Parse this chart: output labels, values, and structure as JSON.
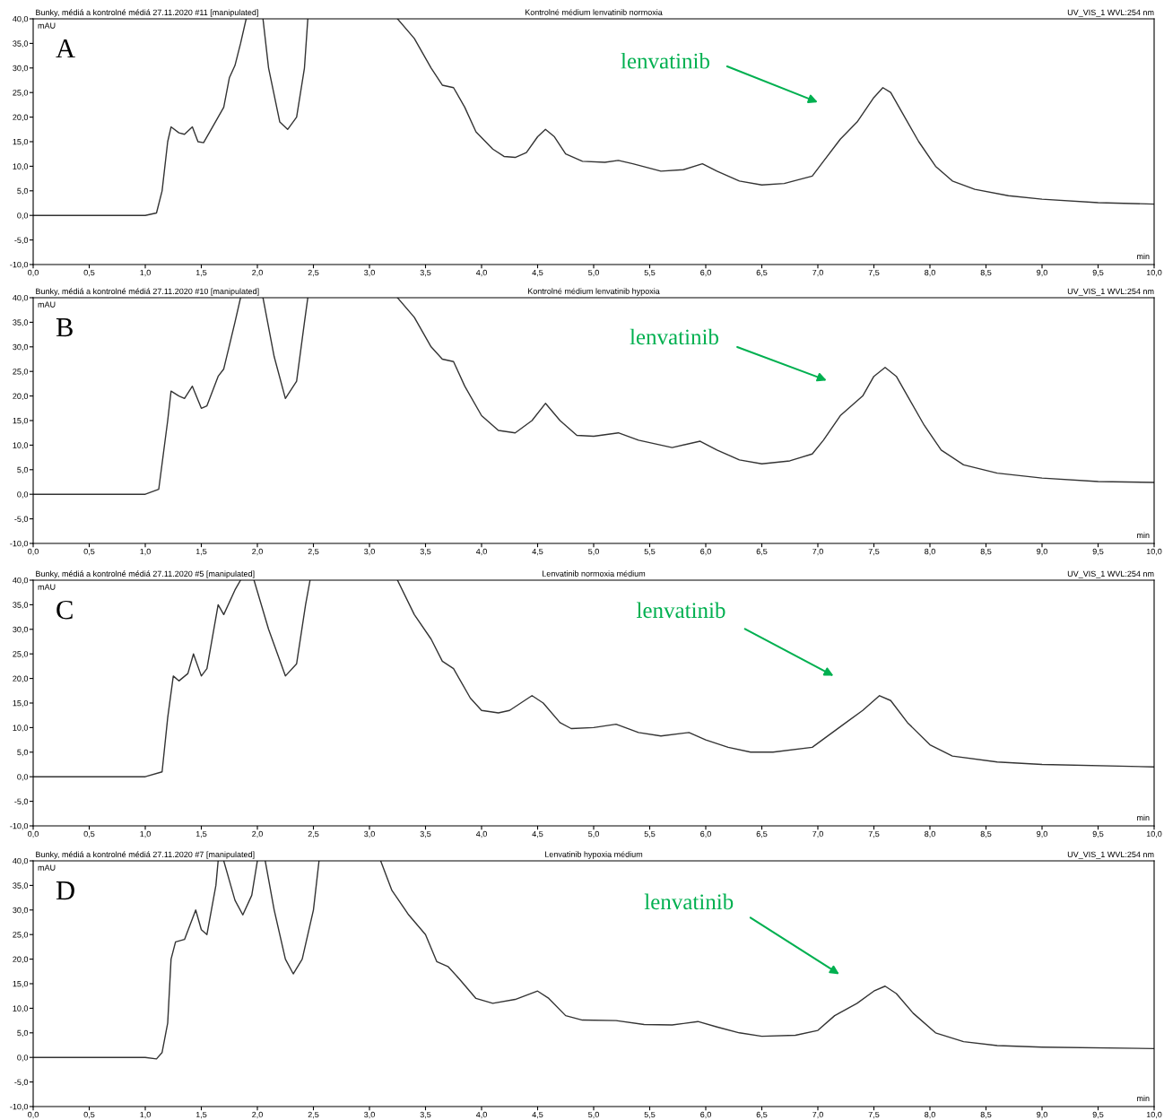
{
  "chart_data": [
    {
      "type": "line",
      "title": "Kontrolné médium lenvatinib normoxia",
      "xlabel": "min",
      "ylabel": "mAU",
      "annotations": [
        "Bunky, médiá a kontrolné médiá 27.11.2020 #11 [manipulated]",
        "UV_VIS_1 WVL:254 nm",
        "A",
        "lenvatinib"
      ],
      "xlim": [
        0,
        10
      ],
      "ylim": [
        -10,
        40
      ],
      "xticks": [
        {
          "value": 0,
          "label": "0,0"
        },
        {
          "value": 0.5,
          "label": "0,5"
        },
        {
          "value": 1,
          "label": "1,0"
        },
        {
          "value": 1.5,
          "label": "1,5"
        },
        {
          "value": 2,
          "label": "2,0"
        },
        {
          "value": 2.5,
          "label": "2,5"
        },
        {
          "value": 3,
          "label": "3,0"
        },
        {
          "value": 3.5,
          "label": "3,5"
        },
        {
          "value": 4,
          "label": "4,0"
        },
        {
          "value": 4.5,
          "label": "4,5"
        },
        {
          "value": 5,
          "label": "5,0"
        },
        {
          "value": 5.5,
          "label": "5,5"
        },
        {
          "value": 6,
          "label": "6,0"
        },
        {
          "value": 6.5,
          "label": "6,5"
        },
        {
          "value": 7,
          "label": "7,0"
        },
        {
          "value": 7.5,
          "label": "7,5"
        },
        {
          "value": 8,
          "label": "8,0"
        },
        {
          "value": 8.5,
          "label": "8,5"
        },
        {
          "value": 9,
          "label": "9,0"
        },
        {
          "value": 9.5,
          "label": "9,5"
        },
        {
          "value": 10,
          "label": "10,0"
        }
      ],
      "yticks": [
        {
          "value": -10,
          "label": "-10,0"
        },
        {
          "value": -5,
          "label": "-5,0"
        },
        {
          "value": 0,
          "label": "0,0"
        },
        {
          "value": 5,
          "label": "5,0"
        },
        {
          "value": 10,
          "label": "10,0"
        },
        {
          "value": 15,
          "label": "15,0"
        },
        {
          "value": 20,
          "label": "20,0"
        },
        {
          "value": 25,
          "label": "25,0"
        },
        {
          "value": 30,
          "label": "30,0"
        },
        {
          "value": 35,
          "label": "35,0"
        },
        {
          "value": 40,
          "label": "40,0"
        }
      ],
      "grid": false,
      "marker": "none",
      "line_style": "solid",
      "series": [
        {
          "color": "#333333",
          "x": [
            0,
            1.0,
            1.1,
            1.15,
            1.2,
            1.23,
            1.3,
            1.35,
            1.42,
            1.47,
            1.52,
            1.6,
            1.7,
            1.75,
            1.8,
            1.85,
            1.9,
            1.95,
            2.05,
            2.1,
            2.2,
            2.27,
            2.35,
            2.42,
            2.45,
            2.8,
            3.25,
            3.4,
            3.55,
            3.65,
            3.75,
            3.85,
            3.95,
            4.1,
            4.2,
            4.3,
            4.4,
            4.5,
            4.57,
            4.65,
            4.75,
            4.9,
            5.1,
            5.22,
            5.35,
            5.6,
            5.8,
            5.97,
            6.1,
            6.3,
            6.5,
            6.7,
            6.95,
            7.05,
            7.2,
            7.35,
            7.5,
            7.58,
            7.65,
            7.75,
            7.9,
            8.05,
            8.2,
            8.4,
            8.7,
            9.0,
            9.5,
            10
          ],
          "values": [
            0,
            0,
            0.5,
            5,
            15,
            18,
            16.8,
            16.5,
            18,
            15,
            14.8,
            18,
            22,
            28,
            30.5,
            35,
            40,
            null,
            40,
            30,
            19,
            17.5,
            20,
            30,
            40,
            null,
            40,
            36,
            30,
            26.5,
            26,
            22,
            17,
            13.5,
            12,
            11.8,
            12.8,
            16,
            17.5,
            16,
            12.5,
            11,
            10.8,
            11.2,
            10.5,
            9,
            9.3,
            10.5,
            9,
            7,
            6.2,
            6.5,
            8,
            11,
            15.5,
            19,
            24,
            26,
            25,
            21,
            15,
            10,
            7,
            5.3,
            4,
            3.3,
            2.6,
            2.3
          ]
        }
      ]
    },
    {
      "type": "line",
      "title": "Kontrolné médium lenvatinib hypoxia",
      "xlabel": "min",
      "ylabel": "mAU",
      "annotations": [
        "Bunky, médiá a kontrolné médiá 27.11.2020 #10 [manipulated]",
        "UV_VIS_1 WVL:254 nm",
        "B",
        "lenvatinib"
      ],
      "xlim": [
        0,
        10
      ],
      "ylim": [
        -10,
        40
      ],
      "xticks": [
        {
          "value": 0,
          "label": "0,0"
        },
        {
          "value": 0.5,
          "label": "0,5"
        },
        {
          "value": 1,
          "label": "1,0"
        },
        {
          "value": 1.5,
          "label": "1,5"
        },
        {
          "value": 2,
          "label": "2,0"
        },
        {
          "value": 2.5,
          "label": "2,5"
        },
        {
          "value": 3,
          "label": "3,0"
        },
        {
          "value": 3.5,
          "label": "3,5"
        },
        {
          "value": 4,
          "label": "4,0"
        },
        {
          "value": 4.5,
          "label": "4,5"
        },
        {
          "value": 5,
          "label": "5,0"
        },
        {
          "value": 5.5,
          "label": "5,5"
        },
        {
          "value": 6,
          "label": "6,0"
        },
        {
          "value": 6.5,
          "label": "6,5"
        },
        {
          "value": 7,
          "label": "7,0"
        },
        {
          "value": 7.5,
          "label": "7,5"
        },
        {
          "value": 8,
          "label": "8,0"
        },
        {
          "value": 8.5,
          "label": "8,5"
        },
        {
          "value": 9,
          "label": "9,0"
        },
        {
          "value": 9.5,
          "label": "9,5"
        },
        {
          "value": 10,
          "label": "10,0"
        }
      ],
      "yticks": [
        {
          "value": -10,
          "label": "-10,0"
        },
        {
          "value": -5,
          "label": "-5,0"
        },
        {
          "value": 0,
          "label": "0,0"
        },
        {
          "value": 5,
          "label": "5,0"
        },
        {
          "value": 10,
          "label": "10,0"
        },
        {
          "value": 15,
          "label": "15,0"
        },
        {
          "value": 20,
          "label": "20,0"
        },
        {
          "value": 25,
          "label": "25,0"
        },
        {
          "value": 30,
          "label": "30,0"
        },
        {
          "value": 35,
          "label": "35,0"
        },
        {
          "value": 40,
          "label": "40,0"
        }
      ],
      "grid": false,
      "marker": "none",
      "line_style": "solid",
      "series": [
        {
          "color": "#333333",
          "x": [
            0,
            1.0,
            1.12,
            1.2,
            1.23,
            1.3,
            1.35,
            1.42,
            1.5,
            1.55,
            1.65,
            1.7,
            1.8,
            1.85,
            1.95,
            2.05,
            2.15,
            2.25,
            2.35,
            2.42,
            2.45,
            2.8,
            3.25,
            3.4,
            3.55,
            3.65,
            3.75,
            3.85,
            4.0,
            4.15,
            4.3,
            4.45,
            4.57,
            4.7,
            4.85,
            5.0,
            5.22,
            5.4,
            5.7,
            5.95,
            6.1,
            6.3,
            6.5,
            6.75,
            6.95,
            7.05,
            7.2,
            7.4,
            7.5,
            7.6,
            7.7,
            7.8,
            7.95,
            8.1,
            8.3,
            8.6,
            9.0,
            9.5,
            10
          ],
          "values": [
            0,
            0,
            1,
            15,
            21,
            20,
            19.5,
            22,
            17.5,
            18,
            24,
            25.5,
            35,
            40,
            null,
            40,
            28,
            19.5,
            23,
            35,
            40,
            null,
            40,
            36,
            30,
            27.5,
            27,
            22,
            16,
            13,
            12.5,
            15,
            18.5,
            15,
            12,
            11.8,
            12.5,
            11,
            9.5,
            10.8,
            9,
            7,
            6.2,
            6.8,
            8.2,
            11,
            16,
            20,
            24,
            25.8,
            24,
            20,
            14,
            9,
            6,
            4.3,
            3.3,
            2.6,
            2.4
          ]
        }
      ]
    },
    {
      "type": "line",
      "title": "Lenvatinib normoxia médium",
      "xlabel": "min",
      "ylabel": "mAU",
      "annotations": [
        "Bunky, médiá a kontrolné médiá 27.11.2020 #5 [manipulated]",
        "UV_VIS_1 WVL:254 nm",
        "C",
        "lenvatinib"
      ],
      "xlim": [
        0,
        10
      ],
      "ylim": [
        -10,
        40
      ],
      "xticks": [
        {
          "value": 0,
          "label": "0,0"
        },
        {
          "value": 0.5,
          "label": "0,5"
        },
        {
          "value": 1,
          "label": "1,0"
        },
        {
          "value": 1.5,
          "label": "1,5"
        },
        {
          "value": 2,
          "label": "2,0"
        },
        {
          "value": 2.5,
          "label": "2,5"
        },
        {
          "value": 3,
          "label": "3,0"
        },
        {
          "value": 3.5,
          "label": "3,5"
        },
        {
          "value": 4,
          "label": "4,0"
        },
        {
          "value": 4.5,
          "label": "4,5"
        },
        {
          "value": 5,
          "label": "5,0"
        },
        {
          "value": 5.5,
          "label": "5,5"
        },
        {
          "value": 6,
          "label": "6,0"
        },
        {
          "value": 6.5,
          "label": "6,5"
        },
        {
          "value": 7,
          "label": "7,0"
        },
        {
          "value": 7.5,
          "label": "7,5"
        },
        {
          "value": 8,
          "label": "8,0"
        },
        {
          "value": 8.5,
          "label": "8,5"
        },
        {
          "value": 9,
          "label": "9,0"
        },
        {
          "value": 9.5,
          "label": "9,5"
        },
        {
          "value": 10,
          "label": "10,0"
        }
      ],
      "yticks": [
        {
          "value": -10,
          "label": "-10,0"
        },
        {
          "value": -5,
          "label": "-5,0"
        },
        {
          "value": 0,
          "label": "0,0"
        },
        {
          "value": 5,
          "label": "5,0"
        },
        {
          "value": 10,
          "label": "10,0"
        },
        {
          "value": 15,
          "label": "15,0"
        },
        {
          "value": 20,
          "label": "20,0"
        },
        {
          "value": 25,
          "label": "25,0"
        },
        {
          "value": 30,
          "label": "30,0"
        },
        {
          "value": 35,
          "label": "35,0"
        },
        {
          "value": 40,
          "label": "40,0"
        }
      ],
      "grid": false,
      "marker": "none",
      "line_style": "solid",
      "series": [
        {
          "color": "#333333",
          "x": [
            0,
            1.0,
            1.15,
            1.2,
            1.25,
            1.3,
            1.38,
            1.43,
            1.5,
            1.55,
            1.65,
            1.7,
            1.8,
            1.85,
            1.9,
            1.97,
            2.1,
            2.25,
            2.35,
            2.43,
            2.47,
            2.8,
            3.25,
            3.4,
            3.55,
            3.65,
            3.75,
            3.9,
            4.0,
            4.15,
            4.25,
            4.45,
            4.55,
            4.7,
            4.8,
            5.0,
            5.2,
            5.4,
            5.6,
            5.85,
            6.0,
            6.2,
            6.4,
            6.6,
            6.95,
            7.1,
            7.25,
            7.4,
            7.55,
            7.65,
            7.8,
            8.0,
            8.2,
            8.6,
            9.0,
            10
          ],
          "values": [
            0,
            0,
            1,
            12,
            20.5,
            19.5,
            21,
            25,
            20.5,
            22,
            35,
            33,
            38,
            40,
            null,
            40,
            30,
            20.5,
            23,
            35,
            40,
            null,
            40,
            33,
            28,
            23.5,
            22,
            16,
            13.5,
            13,
            13.5,
            16.5,
            15,
            11,
            9.8,
            10,
            10.7,
            9,
            8.3,
            9,
            7.5,
            6,
            5,
            5,
            6,
            8.5,
            11,
            13.5,
            16.5,
            15.5,
            11,
            6.5,
            4.2,
            3,
            2.5,
            2.0
          ]
        }
      ]
    },
    {
      "type": "line",
      "title": "Lenvatinib hypoxia médium",
      "xlabel": "min",
      "ylabel": "mAU",
      "annotations": [
        "Bunky, médiá a kontrolné médiá 27.11.2020 #7 [manipulated]",
        "UV_VIS_1 WVL:254 nm",
        "D",
        "lenvatinib"
      ],
      "xlim": [
        0,
        10
      ],
      "ylim": [
        -10,
        40
      ],
      "xticks": [
        {
          "value": 0,
          "label": "0,0"
        },
        {
          "value": 0.5,
          "label": "0,5"
        },
        {
          "value": 1,
          "label": "1,0"
        },
        {
          "value": 1.5,
          "label": "1,5"
        },
        {
          "value": 2,
          "label": "2,0"
        },
        {
          "value": 2.5,
          "label": "2,5"
        },
        {
          "value": 3,
          "label": "3,0"
        },
        {
          "value": 3.5,
          "label": "3,5"
        },
        {
          "value": 4,
          "label": "4,0"
        },
        {
          "value": 4.5,
          "label": "4,5"
        },
        {
          "value": 5,
          "label": "5,0"
        },
        {
          "value": 5.5,
          "label": "5,5"
        },
        {
          "value": 6,
          "label": "6,0"
        },
        {
          "value": 6.5,
          "label": "6,5"
        },
        {
          "value": 7,
          "label": "7,0"
        },
        {
          "value": 7.5,
          "label": "7,5"
        },
        {
          "value": 8,
          "label": "8,0"
        },
        {
          "value": 8.5,
          "label": "8,5"
        },
        {
          "value": 9,
          "label": "9,0"
        },
        {
          "value": 9.5,
          "label": "9,5"
        },
        {
          "value": 10,
          "label": "10,0"
        }
      ],
      "yticks": [
        {
          "value": -10,
          "label": "-10,0"
        },
        {
          "value": -5,
          "label": "-5,0"
        },
        {
          "value": 0,
          "label": "0,0"
        },
        {
          "value": 5,
          "label": "5,0"
        },
        {
          "value": 10,
          "label": "10,0"
        },
        {
          "value": 15,
          "label": "15,0"
        },
        {
          "value": 20,
          "label": "20,0"
        },
        {
          "value": 25,
          "label": "25,0"
        },
        {
          "value": 30,
          "label": "30,0"
        },
        {
          "value": 35,
          "label": "35,0"
        },
        {
          "value": 40,
          "label": "40,0"
        }
      ],
      "grid": false,
      "marker": "none",
      "line_style": "solid",
      "series": [
        {
          "color": "#333333",
          "x": [
            0,
            1.0,
            1.1,
            1.15,
            1.2,
            1.23,
            1.27,
            1.35,
            1.4,
            1.45,
            1.5,
            1.55,
            1.63,
            1.65,
            1.67,
            1.7,
            1.8,
            1.87,
            1.95,
            2.0,
            2.03,
            2.07,
            2.15,
            2.25,
            2.32,
            2.4,
            2.5,
            2.55,
            2.8,
            3.1,
            3.2,
            3.35,
            3.5,
            3.6,
            3.7,
            3.8,
            3.95,
            4.1,
            4.3,
            4.5,
            4.6,
            4.75,
            4.9,
            5.2,
            5.45,
            5.7,
            5.93,
            6.1,
            6.3,
            6.5,
            6.8,
            7.0,
            7.15,
            7.35,
            7.5,
            7.6,
            7.7,
            7.85,
            8.05,
            8.3,
            8.6,
            9.0,
            10
          ],
          "values": [
            0,
            0,
            -0.3,
            1,
            7,
            20,
            23.5,
            24,
            27,
            30,
            26,
            25,
            35,
            40,
            null,
            40,
            32,
            29,
            33,
            40,
            null,
            40,
            30,
            20,
            17,
            20,
            30,
            40,
            null,
            40,
            34,
            29,
            25,
            19.5,
            18.5,
            16,
            12,
            11,
            11.8,
            13.5,
            12,
            8.5,
            7.6,
            7.5,
            6.7,
            6.6,
            7.3,
            6.2,
            5,
            4.3,
            4.5,
            5.5,
            8.5,
            11,
            13.5,
            14.5,
            13,
            9,
            5,
            3.2,
            2.4,
            2.1,
            1.8
          ]
        }
      ]
    }
  ]
}
